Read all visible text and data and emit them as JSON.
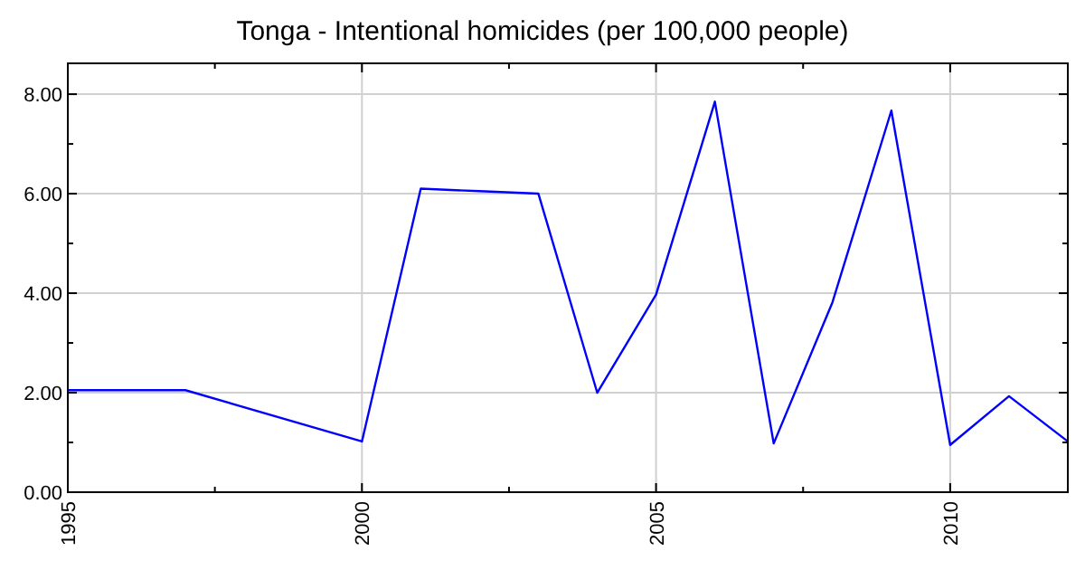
{
  "chart_data": {
    "type": "line",
    "title": "Tonga - Intentional homicides (per 100,000 people)",
    "x": [
      1995,
      1997,
      2000,
      2001,
      2002,
      2003,
      2004,
      2005,
      2006,
      2007,
      2008,
      2009,
      2010,
      2011,
      2012
    ],
    "series": [
      {
        "color": "#0000ff",
        "values": [
          2.05,
          2.05,
          1.02,
          6.1,
          6.05,
          6.0,
          2.0,
          3.97,
          7.85,
          0.98,
          3.82,
          7.67,
          0.95,
          1.93,
          1.02
        ]
      }
    ],
    "xlim": [
      1995,
      2012
    ],
    "xticks": [
      1995,
      {
        "value": 1997.5,
        "label": null
      },
      2000,
      {
        "value": 2002.5,
        "label": null
      },
      2005,
      {
        "value": 2007.5,
        "label": null
      },
      2010
    ],
    "ylim": [
      0,
      8.62
    ],
    "yticks": [
      {
        "value": 0,
        "label": "0.00"
      },
      {
        "value": 1,
        "label": null
      },
      {
        "value": 2,
        "label": "2.00"
      },
      {
        "value": 3,
        "label": null
      },
      {
        "value": 4,
        "label": "4.00"
      },
      {
        "value": 5,
        "label": null
      },
      {
        "value": 6,
        "label": "6.00"
      },
      {
        "value": 7,
        "label": null
      },
      {
        "value": 8,
        "label": "8.00"
      }
    ],
    "grid": true,
    "marker": "none",
    "line_style": "solid"
  }
}
